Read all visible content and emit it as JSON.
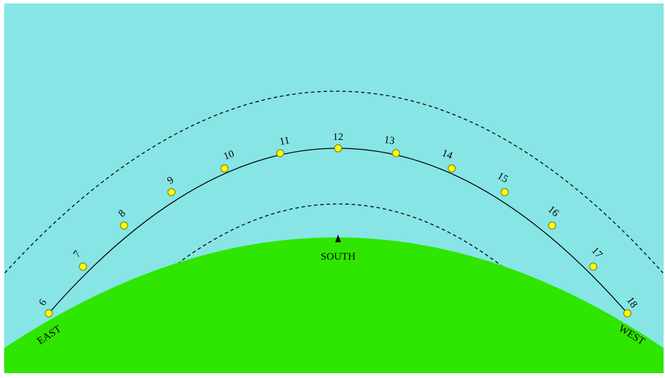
{
  "colors": {
    "sky": "#87E5E5",
    "ground": "#2EE600",
    "marker_fill": "#FFFF00",
    "marker_stroke": "#666600",
    "path": "#000000",
    "text": "#000000"
  },
  "sun_path": {
    "hours": [
      "6",
      "7",
      "8",
      "9",
      "10",
      "11",
      "12",
      "13",
      "14",
      "15",
      "16",
      "17",
      "18"
    ]
  },
  "horizon": {
    "east_label": "EAST",
    "south_label": "SOUTH",
    "west_label": "WEST"
  }
}
